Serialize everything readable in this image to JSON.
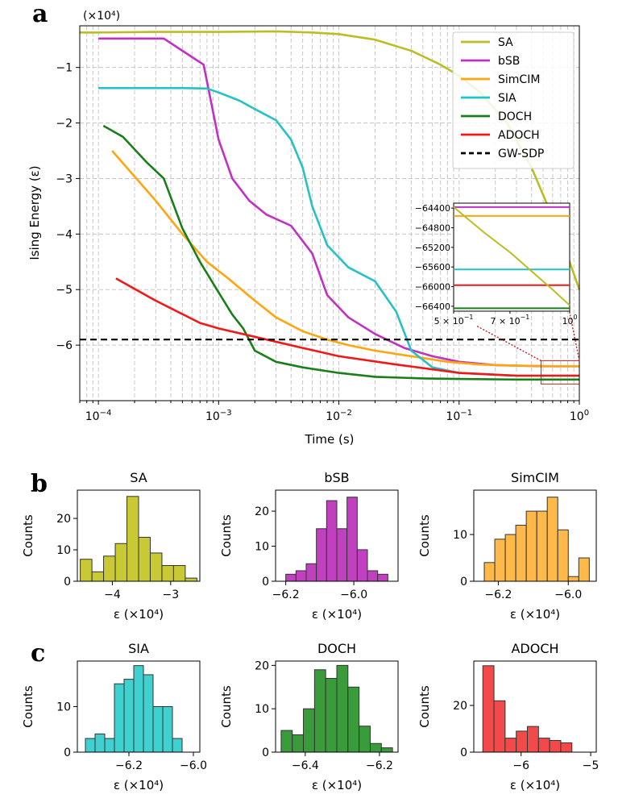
{
  "chart_data": [
    {
      "panel": "a",
      "type": "line",
      "xscale": "log",
      "xlim": [
        7e-05,
        1
      ],
      "ylim": [
        -7.0,
        -0.25
      ],
      "xlabel": "Time (s)",
      "ylabel": "Ising Energy (ε)",
      "y_multiplier": "(×10⁴)",
      "x_ticks": [
        {
          "value": 0.0001,
          "base": "10",
          "exp": "−4"
        },
        {
          "value": 0.001,
          "base": "10",
          "exp": "−3"
        },
        {
          "value": 0.01,
          "base": "10",
          "exp": "−2"
        },
        {
          "value": 0.1,
          "base": "10",
          "exp": "−1"
        },
        {
          "value": 1,
          "base": "10",
          "exp": "0"
        }
      ],
      "y_ticks": [
        {
          "value": -1,
          "label": "−1"
        },
        {
          "value": -2,
          "label": "−2"
        },
        {
          "value": -3,
          "label": "−3"
        },
        {
          "value": -4,
          "label": "−4"
        },
        {
          "value": -5,
          "label": "−5"
        },
        {
          "value": -6,
          "label": "−6"
        }
      ],
      "grid": true,
      "legend_position": "top-right",
      "series": [
        {
          "name": "SA",
          "color": "#bcbd22",
          "style": "solid",
          "x": [
            7e-05,
            0.0001,
            0.0003,
            0.001,
            0.003,
            0.006,
            0.01,
            0.02,
            0.04,
            0.07,
            0.1,
            0.15,
            0.25,
            0.4,
            0.6,
            0.8,
            1.0
          ],
          "y": [
            -0.37,
            -0.37,
            -0.36,
            -0.36,
            -0.35,
            -0.37,
            -0.4,
            -0.5,
            -0.7,
            -0.95,
            -1.15,
            -1.45,
            -2.0,
            -2.8,
            -3.7,
            -4.4,
            -5.0
          ]
        },
        {
          "name": "bSB",
          "color": "#c22fc3",
          "style": "solid",
          "x": [
            0.0001,
            0.00035,
            0.0005,
            0.00075,
            0.001,
            0.0013,
            0.0018,
            0.0025,
            0.004,
            0.006,
            0.008,
            0.012,
            0.02,
            0.035,
            0.06,
            0.1,
            0.2,
            0.5,
            1.0
          ],
          "y": [
            -0.48,
            -0.48,
            -0.7,
            -0.95,
            -2.3,
            -3.0,
            -3.4,
            -3.65,
            -3.85,
            -4.35,
            -5.1,
            -5.5,
            -5.8,
            -6.05,
            -6.2,
            -6.3,
            -6.36,
            -6.38,
            -6.38
          ]
        },
        {
          "name": "SimCIM",
          "color": "#ffa50f",
          "style": "solid",
          "x": [
            0.00013,
            0.0003,
            0.0005,
            0.0008,
            0.0012,
            0.002,
            0.003,
            0.005,
            0.008,
            0.012,
            0.02,
            0.04,
            0.08,
            0.15,
            0.3,
            0.6,
            1.0
          ],
          "y": [
            -2.5,
            -3.4,
            -4.0,
            -4.5,
            -4.8,
            -5.2,
            -5.5,
            -5.75,
            -5.9,
            -6.0,
            -6.1,
            -6.2,
            -6.3,
            -6.35,
            -6.37,
            -6.38,
            -6.38
          ]
        },
        {
          "name": "SIA",
          "color": "#25c2c5",
          "style": "solid",
          "x": [
            0.0001,
            0.0005,
            0.0008,
            0.001,
            0.0015,
            0.002,
            0.003,
            0.004,
            0.005,
            0.006,
            0.008,
            0.012,
            0.02,
            0.03,
            0.04,
            0.06,
            0.1,
            0.3,
            1.0
          ],
          "y": [
            -1.37,
            -1.37,
            -1.38,
            -1.45,
            -1.6,
            -1.75,
            -1.95,
            -2.3,
            -2.8,
            -3.5,
            -4.2,
            -4.6,
            -4.85,
            -5.4,
            -6.1,
            -6.4,
            -6.5,
            -6.55,
            -6.55
          ]
        },
        {
          "name": "DOCH",
          "color": "#1a7f1a",
          "style": "solid",
          "x": [
            0.00011,
            0.00016,
            0.00025,
            0.00035,
            0.0005,
            0.0007,
            0.001,
            0.0013,
            0.0016,
            0.002,
            0.003,
            0.005,
            0.01,
            0.02,
            0.05,
            0.1,
            0.3,
            1.0
          ],
          "y": [
            -2.05,
            -2.25,
            -2.7,
            -3.0,
            -3.9,
            -4.5,
            -5.05,
            -5.45,
            -5.7,
            -6.1,
            -6.3,
            -6.4,
            -6.5,
            -6.57,
            -6.6,
            -6.61,
            -6.62,
            -6.62
          ]
        },
        {
          "name": "ADOCH",
          "color": "#f01818",
          "style": "solid",
          "x": [
            0.00014,
            0.0003,
            0.0007,
            0.001,
            0.002,
            0.005,
            0.01,
            0.03,
            0.1,
            0.3,
            1.0
          ],
          "y": [
            -4.8,
            -5.2,
            -5.6,
            -5.7,
            -5.85,
            -6.05,
            -6.2,
            -6.35,
            -6.5,
            -6.55,
            -6.55
          ]
        },
        {
          "name": "GW-SDP",
          "color": "#000000",
          "style": "dashed",
          "x": [
            7e-05,
            1.0
          ],
          "y": [
            -5.9,
            -5.9
          ]
        }
      ],
      "inset": {
        "xscale": "log",
        "xlim": [
          0.5,
          1.0
        ],
        "ylim": [
          -66500,
          -64300
        ],
        "y_ticks": [
          "−64400",
          "−64800",
          "−65200",
          "−65600",
          "−66000",
          "−66400"
        ],
        "y_tick_values": [
          -64400,
          -64800,
          -65200,
          -65600,
          -66000,
          -66400
        ],
        "x_ticks": [
          {
            "value": 0.5,
            "label": "5 × 10",
            "exp": "−1"
          },
          {
            "value": 0.7,
            "label": "7 × 10",
            "exp": "−1"
          },
          {
            "value": 1.0,
            "label": "10",
            "exp": "0"
          }
        ],
        "lines": [
          {
            "name": "bSB",
            "color": "#c22fc3",
            "y": -64380
          },
          {
            "name": "SimCIM",
            "color": "#ffa50f",
            "y": -64560
          },
          {
            "name": "SIA",
            "color": "#25c2c5",
            "y": -65650
          },
          {
            "name": "ADOCH",
            "color": "#f01818",
            "y": -65970
          },
          {
            "name": "DOCH",
            "color": "#1a7f1a",
            "y": -66440
          },
          {
            "name": "SA",
            "color": "#bcbd22",
            "y": null
          }
        ],
        "sa_points": [
          [
            0.5,
            -64380
          ],
          [
            0.6,
            -64900
          ],
          [
            0.7,
            -65300
          ],
          [
            0.8,
            -65700
          ],
          [
            0.9,
            -66050
          ],
          [
            1.0,
            -66380
          ]
        ]
      }
    },
    {
      "panel": "b",
      "type": "bar",
      "name": "SA",
      "color": "#c9c935",
      "xlabel": "ε (×10⁴)",
      "ylabel": "Counts",
      "bin_edges": [
        -4.55,
        -4.35,
        -4.15,
        -3.95,
        -3.75,
        -3.55,
        -3.35,
        -3.15,
        -2.95,
        -2.75,
        -2.55
      ],
      "counts": [
        7,
        3,
        8,
        12,
        27,
        14,
        9,
        5,
        5,
        1
      ],
      "xlim": [
        -4.6,
        -2.5
      ],
      "ylim": [
        0,
        29
      ],
      "x_ticks": [
        {
          "value": -4,
          "label": "−4"
        },
        {
          "value": -3,
          "label": "−3"
        }
      ],
      "y_ticks": [
        {
          "value": 0,
          "label": "0"
        },
        {
          "value": 10,
          "label": "10"
        },
        {
          "value": 20,
          "label": "20"
        }
      ]
    },
    {
      "panel": "b",
      "type": "bar",
      "name": "bSB",
      "color": "#c040c0",
      "xlabel": "ε (×10⁴)",
      "ylabel": "Counts",
      "bin_edges": [
        -6.2,
        -6.17,
        -6.14,
        -6.11,
        -6.08,
        -6.05,
        -6.02,
        -5.99,
        -5.96,
        -5.93,
        -5.9
      ],
      "counts": [
        2,
        3,
        5,
        15,
        23,
        15,
        24,
        9,
        3,
        2
      ],
      "xlim": [
        -6.23,
        -5.87
      ],
      "ylim": [
        0,
        26
      ],
      "x_ticks": [
        {
          "value": -6.2,
          "label": "−6.2"
        },
        {
          "value": -6.0,
          "label": "−6.0"
        }
      ],
      "y_ticks": [
        {
          "value": 0,
          "label": "0"
        },
        {
          "value": 10,
          "label": "10"
        },
        {
          "value": 20,
          "label": "20"
        }
      ]
    },
    {
      "panel": "b",
      "type": "bar",
      "name": "SimCIM",
      "color": "#ffb84a",
      "xlabel": "ε (×10⁴)",
      "ylabel": "Counts",
      "bin_edges": [
        -6.24,
        -6.21,
        -6.18,
        -6.15,
        -6.12,
        -6.09,
        -6.06,
        -6.03,
        -6.0,
        -5.97,
        -5.94
      ],
      "counts": [
        4,
        9,
        10,
        12,
        15,
        15,
        18,
        11,
        1,
        5
      ],
      "xlim": [
        -6.27,
        -5.92
      ],
      "ylim": [
        0,
        19.5
      ],
      "x_ticks": [
        {
          "value": -6.2,
          "label": "−6.2"
        },
        {
          "value": -6.0,
          "label": "−6.0"
        }
      ],
      "y_ticks": [
        {
          "value": 0,
          "label": "0"
        },
        {
          "value": 10,
          "label": "10"
        }
      ]
    },
    {
      "panel": "c",
      "type": "bar",
      "name": "SIA",
      "color": "#40d0d0",
      "xlabel": "ε (×10⁴)",
      "ylabel": "Counts",
      "bin_edges": [
        -6.335,
        -6.305,
        -6.275,
        -6.245,
        -6.215,
        -6.185,
        -6.155,
        -6.125,
        -6.095,
        -6.065,
        -6.035
      ],
      "counts": [
        3,
        4,
        3,
        15,
        16,
        19,
        17,
        10,
        10,
        3
      ],
      "xlim": [
        -6.36,
        -5.98
      ],
      "ylim": [
        0,
        20
      ],
      "x_ticks": [
        {
          "value": -6.2,
          "label": "−6.2"
        },
        {
          "value": -6.0,
          "label": "−6.0"
        }
      ],
      "y_ticks": [
        {
          "value": 0,
          "label": "0"
        },
        {
          "value": 10,
          "label": "10"
        }
      ]
    },
    {
      "panel": "c",
      "type": "bar",
      "name": "DOCH",
      "color": "#3a9b3a",
      "xlabel": "ε (×10⁴)",
      "ylabel": "Counts",
      "bin_edges": [
        -6.465,
        -6.435,
        -6.405,
        -6.375,
        -6.345,
        -6.315,
        -6.285,
        -6.255,
        -6.225,
        -6.195,
        -6.165
      ],
      "counts": [
        5,
        4,
        10,
        19,
        17,
        20,
        15,
        6,
        2,
        1
      ],
      "xlim": [
        -6.48,
        -6.15
      ],
      "ylim": [
        0,
        21
      ],
      "x_ticks": [
        {
          "value": -6.4,
          "label": "−6.4"
        },
        {
          "value": -6.2,
          "label": "−6.2"
        }
      ],
      "y_ticks": [
        {
          "value": 0,
          "label": "0"
        },
        {
          "value": 10,
          "label": "10"
        },
        {
          "value": 20,
          "label": "20"
        }
      ]
    },
    {
      "panel": "c",
      "type": "bar",
      "name": "ADOCH",
      "color": "#f24a4a",
      "xlabel": "ε (×10⁴)",
      "ylabel": "Counts",
      "bin_edges": [
        -6.55,
        -6.39,
        -6.23,
        -6.07,
        -5.91,
        -5.75,
        -5.59,
        -5.43,
        -5.27
      ],
      "counts": [
        37,
        22,
        6,
        9,
        11,
        6,
        5,
        4
      ],
      "xlim": [
        -6.68,
        -4.92
      ],
      "ylim": [
        0,
        39
      ],
      "x_ticks": [
        {
          "value": -6,
          "label": "−6"
        },
        {
          "value": -5,
          "label": "−5"
        }
      ],
      "y_ticks": [
        {
          "value": 0,
          "label": "0"
        },
        {
          "value": 20,
          "label": "20"
        }
      ]
    }
  ],
  "panel_letters": {
    "a": "a",
    "b": "b",
    "c": "c"
  }
}
